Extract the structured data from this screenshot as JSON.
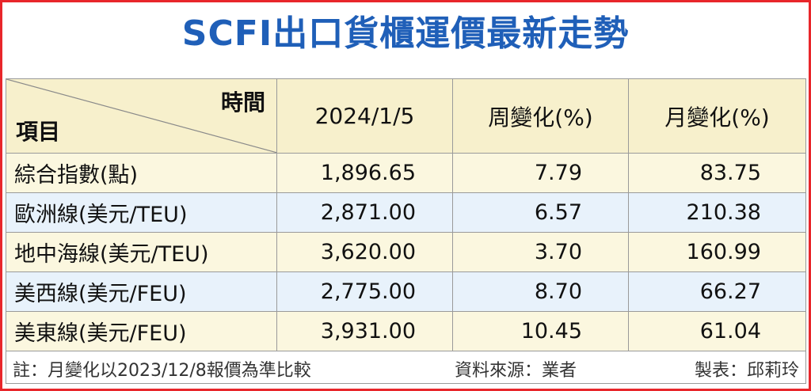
{
  "title": "SCFI出口貨櫃運價最新走勢",
  "header": {
    "corner_top": "時間",
    "corner_bottom": "項目",
    "columns": [
      "2024/1/5",
      "周變化(%)",
      "月變化(%)"
    ]
  },
  "rows": [
    {
      "item": "綜合指數(點)",
      "value": "1,896.65",
      "weekly": "7.79",
      "monthly": "83.75"
    },
    {
      "item": "歐洲線(美元/TEU)",
      "value": "2,871.00",
      "weekly": "6.57",
      "monthly": "210.38"
    },
    {
      "item": "地中海線(美元/TEU)",
      "value": "3,620.00",
      "weekly": "3.70",
      "monthly": "160.99"
    },
    {
      "item": "美西線(美元/FEU)",
      "value": "2,775.00",
      "weekly": "8.70",
      "monthly": "66.27"
    },
    {
      "item": "美東線(美元/FEU)",
      "value": "3,931.00",
      "weekly": "10.45",
      "monthly": "61.04"
    }
  ],
  "footer": {
    "note": "註：月變化以2023/12/8報價為準比較",
    "source": "資料來源：業者",
    "maker": "製表：邱莉玲"
  },
  "colors": {
    "border": "#e8262b",
    "title": "#1f5fb8",
    "header_bg": "#f7f0cc",
    "row_cream": "#fbf7df",
    "row_blue": "#e8f2fb"
  }
}
